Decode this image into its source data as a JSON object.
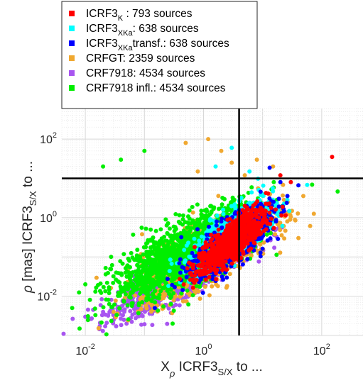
{
  "chart_data": {
    "type": "scatter",
    "x_scale": "log",
    "y_scale": "log",
    "xlim": [
      0.004,
      500
    ],
    "ylim": [
      0.001,
      600
    ],
    "grid": true,
    "minor_grid": true,
    "legend_position": "top-left",
    "x_ticks": [
      {
        "value": 0.01,
        "base": "10",
        "exp": "-2"
      },
      {
        "value": 1,
        "base": "10",
        "exp": "0"
      },
      {
        "value": 100,
        "base": "10",
        "exp": "2"
      }
    ],
    "y_ticks": [
      {
        "value": 0.01,
        "base": "10",
        "exp": "-2"
      },
      {
        "value": 1,
        "base": "10",
        "exp": "0"
      },
      {
        "value": 100,
        "base": "10",
        "exp": "2"
      }
    ],
    "xlabel": {
      "pre": "X",
      "sub1": "ρ",
      "mid": " ICRF3",
      "sub2": "S/X",
      "post": " to ..."
    },
    "ylabel": {
      "rho": "ρ",
      "mid": " [mas] ICRF3",
      "sub": "S/X",
      "post": " to ..."
    },
    "reference_lines": {
      "vertical_x": 4,
      "horizontal_y": 10,
      "color": "#000000"
    },
    "series": [
      {
        "name": "ICRF3",
        "sub": "K",
        "suffix": "    : 793 sources",
        "count": 793,
        "color": "#ff0000",
        "cloud": {
          "cx": 0.48,
          "cy": -0.62,
          "sx": 0.3,
          "sy": 0.42,
          "rho": 0.8
        },
        "outliers": [
          [
            150,
            35
          ],
          [
            20,
            12
          ],
          [
            30,
            8
          ],
          [
            1.5,
            0.05
          ],
          [
            5,
            2
          ]
        ]
      },
      {
        "name": "ICRF3",
        "sub": "XKa",
        "suffix": ": 638 sources",
        "count": 638,
        "color": "#00ffff",
        "cloud": {
          "cx": 0.5,
          "cy": -0.4,
          "sx": 0.35,
          "sy": 0.45,
          "rho": 0.75
        },
        "outliers": [
          [
            3,
            60
          ],
          [
            1.6,
            20
          ],
          [
            6,
            15
          ]
        ]
      },
      {
        "name": "ICRF3",
        "sub": "XKa",
        "suffix": "transf.: 638 sources",
        "count": 638,
        "color": "#0000ff",
        "cloud": {
          "cx": 0.45,
          "cy": -0.65,
          "sx": 0.35,
          "sy": 0.45,
          "rho": 0.75
        },
        "outliers": [
          [
            0.15,
            0.005
          ],
          [
            20,
            8
          ],
          [
            2,
            0.8
          ]
        ]
      },
      {
        "name": "CRFGT",
        "sub": "",
        "suffix": ": 2359 sources",
        "count": 2359,
        "color": "#f0a830",
        "cloud": {
          "cx": 0.05,
          "cy": -0.9,
          "sx": 0.55,
          "sy": 0.55,
          "rho": 0.75
        },
        "outliers": [
          [
            0.5,
            80
          ],
          [
            2,
            50
          ],
          [
            8,
            30
          ],
          [
            15,
            20
          ],
          [
            1.2,
            100
          ],
          [
            5,
            12
          ],
          [
            3,
            25
          ],
          [
            0.8,
            15
          ]
        ]
      },
      {
        "name": "CRF7918",
        "sub": "",
        "suffix": ": 4534 sources",
        "count": 4534,
        "color": "#a855f0",
        "cloud": {
          "cx": -0.3,
          "cy": -1.4,
          "sx": 0.55,
          "sy": 0.5,
          "rho": 0.85
        },
        "outliers": [
          [
            0.02,
            0.004
          ],
          [
            0.01,
            0.003
          ],
          [
            0.05,
            0.002
          ]
        ]
      },
      {
        "name": "CRF7918 infl.",
        "sub": "",
        "suffix": ": 4534 sources",
        "count": 4534,
        "color": "#00ee00",
        "cloud": {
          "cx": -0.3,
          "cy": -0.9,
          "sx": 0.6,
          "sy": 0.6,
          "rho": 0.75
        },
        "outliers": [
          [
            0.006,
            0.005
          ],
          [
            0.01,
            0.02
          ],
          [
            0.1,
            50
          ],
          [
            0.04,
            30
          ],
          [
            0.3,
            0.002
          ],
          [
            0.008,
            0.0015
          ],
          [
            0.02,
            20
          ]
        ]
      }
    ]
  }
}
